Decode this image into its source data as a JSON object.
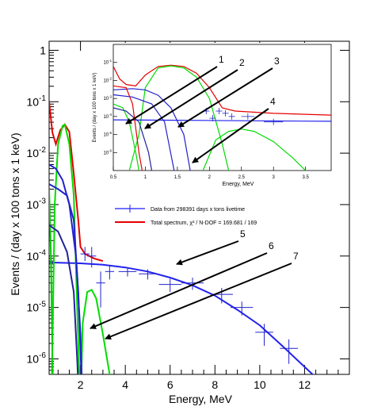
{
  "chart_data": {
    "type": "line",
    "xlabel": "Energy, MeV",
    "ylabel": "Events / (day x 100 tons x 1 keV)",
    "xlim": [
      0.6,
      14.0
    ],
    "ylim": [
      5e-07,
      1.5
    ],
    "yscale": "log",
    "x_ticks": [
      2,
      4,
      6,
      8,
      10,
      12
    ],
    "x_tick_labels": [
      "2",
      "4",
      "6",
      "8",
      "10",
      "12"
    ],
    "y_ticks": [
      1e-06,
      1e-05,
      0.0001,
      0.001,
      0.01,
      0.1,
      1
    ],
    "y_tick_labels": [
      "10^-6",
      "10^-5",
      "10^-4",
      "10^-3",
      "10^-2",
      "10^-1",
      "1"
    ],
    "legend": {
      "placement": "center-right",
      "entries": [
        {
          "label": "Data from 298391 days x tons livetime",
          "color": "#1a1aff"
        },
        {
          "label": "Total spectrum, χ² / N-DOF = 169.681 / 169",
          "color": "#e60000"
        }
      ]
    },
    "series": [
      {
        "color": "#2222ee",
        "role": "flat component",
        "points": [
          [
            0.6,
            7.5e-05
          ],
          [
            2,
            7.2e-05
          ],
          [
            3,
            6.8e-05
          ],
          [
            4,
            6e-05
          ],
          [
            5,
            5e-05
          ],
          [
            6,
            3.8e-05
          ],
          [
            7,
            2.7e-05
          ],
          [
            8,
            1.7e-05
          ],
          [
            9,
            9e-06
          ],
          [
            10,
            4.5e-06
          ],
          [
            11,
            1.8e-06
          ],
          [
            12,
            7e-07
          ],
          [
            12.6,
            4e-07
          ]
        ]
      },
      {
        "color": "#e60000",
        "role": "total spectrum",
        "points": [
          [
            0.6,
            0.1
          ],
          [
            0.75,
            0.025
          ],
          [
            0.9,
            0.015
          ],
          [
            1.1,
            0.028
          ],
          [
            1.3,
            0.036
          ],
          [
            1.5,
            0.026
          ],
          [
            1.7,
            0.004
          ],
          [
            1.9,
            0.0005
          ],
          [
            2.0,
            0.00015
          ],
          [
            2.2,
            0.00011
          ],
          [
            2.6,
            9e-05
          ],
          [
            3,
            8e-05
          ]
        ]
      },
      {
        "color": "#00dd00",
        "role": "peak component",
        "points": [
          [
            0.7,
            1e-07
          ],
          [
            0.85,
            0.001
          ],
          [
            1.0,
            0.015
          ],
          [
            1.2,
            0.034
          ],
          [
            1.3,
            0.036
          ],
          [
            1.5,
            0.015
          ],
          [
            1.7,
            0.0015
          ],
          [
            1.85,
            1e-05
          ],
          [
            2.0,
            1e-07
          ]
        ]
      },
      {
        "color": "#00dd00",
        "role": "high-energy gaussian",
        "points": [
          [
            2.0,
            1e-07
          ],
          [
            2.1,
            5e-06
          ],
          [
            2.3,
            2e-05
          ],
          [
            2.5,
            2.2e-05
          ],
          [
            2.7,
            1.5e-05
          ],
          [
            3.0,
            3e-06
          ],
          [
            3.3,
            5e-07
          ],
          [
            3.6,
            1e-07
          ]
        ]
      },
      {
        "color": "#00cc00",
        "role": "low-energy component",
        "points": [
          [
            0.6,
            0.002
          ],
          [
            0.68,
            0.0001
          ],
          [
            0.75,
            1e-06
          ],
          [
            0.8,
            1e-07
          ]
        ]
      },
      {
        "color": "#2222cc",
        "role": "blue component 1",
        "points": [
          [
            0.6,
            0.006
          ],
          [
            0.9,
            0.005
          ],
          [
            1.2,
            0.003
          ],
          [
            1.5,
            0.001
          ],
          [
            1.8,
            0.0001
          ],
          [
            2.0,
            3e-06
          ],
          [
            2.1,
            1e-07
          ]
        ]
      },
      {
        "color": "#2222cc",
        "role": "blue component 2",
        "points": [
          [
            0.6,
            0.0025
          ],
          [
            1.0,
            0.002
          ],
          [
            1.4,
            0.0015
          ],
          [
            1.7,
            0.0005
          ],
          [
            1.9,
            2e-05
          ],
          [
            2.1,
            1e-07
          ]
        ]
      },
      {
        "color": "#222299",
        "role": "blue component 3",
        "points": [
          [
            0.6,
            0.0004
          ],
          [
            1.0,
            0.0003
          ],
          [
            1.4,
            0.00012
          ],
          [
            1.7,
            2e-05
          ],
          [
            1.85,
            1e-06
          ],
          [
            1.95,
            1e-07
          ]
        ]
      }
    ],
    "data_points": {
      "color": "#2222cc",
      "points": [
        [
          2.2,
          0.00011
        ],
        [
          2.5,
          0.0001
        ],
        [
          2.9,
          3e-05
        ],
        [
          3.3,
          5e-05
        ],
        [
          4.1,
          5e-05
        ],
        [
          5.0,
          4.5e-05
        ],
        [
          6.0,
          2.8e-05
        ],
        [
          7.0,
          3e-05
        ],
        [
          8.3,
          1.8e-05
        ],
        [
          9.2,
          1e-05
        ],
        [
          10.2,
          3.3e-06
        ],
        [
          11.3,
          1.6e-06
        ]
      ],
      "xerr": [
        0.2,
        0.2,
        0.2,
        0.2,
        0.4,
        0.4,
        0.5,
        0.5,
        0.5,
        0.5,
        0.4,
        0.4
      ],
      "yerr_lo": [
        3e-05,
        4e-05,
        2e-05,
        1.5e-05,
        1e-05,
        1e-05,
        8e-06,
        8e-06,
        6e-06,
        3e-06,
        1.5e-06,
        8e-07
      ],
      "yerr_hi": [
        4e-05,
        5e-05,
        2e-05,
        1.5e-05,
        1e-05,
        1e-05,
        8e-06,
        8e-06,
        6e-06,
        3e-06,
        1.5e-06,
        8e-07
      ]
    },
    "annotations": [
      "1",
      "2",
      "3",
      "4",
      "5",
      "6",
      "7"
    ],
    "inset": {
      "xlabel": "Energy, MeV",
      "ylabel": "Events / (day x 100 tons x 1 keV)",
      "xlim": [
        0.5,
        3.9
      ],
      "ylim": [
        1e-07,
        1
      ],
      "yscale": "log",
      "x_ticks": [
        0.5,
        1,
        1.5,
        2,
        2.5,
        3,
        3.5
      ],
      "x_tick_labels": [
        "0.5",
        "1",
        "1.5",
        "2",
        "2.5",
        "3",
        "3.5"
      ],
      "y_ticks": [
        1e-06,
        1e-05,
        0.0001,
        0.001,
        0.01,
        0.1
      ],
      "y_tick_labels": [
        "10^-6",
        "10^-5",
        "10^-4",
        "10^-3",
        "10^-2",
        "10^-1"
      ],
      "series": [
        {
          "color": "#e60000",
          "role": "total spectrum",
          "points": [
            [
              0.5,
              0.06
            ],
            [
              0.6,
              0.012
            ],
            [
              0.7,
              0.006
            ],
            [
              0.85,
              0.005
            ],
            [
              1.0,
              0.02
            ],
            [
              1.2,
              0.06
            ],
            [
              1.4,
              0.07
            ],
            [
              1.6,
              0.06
            ],
            [
              1.8,
              0.025
            ],
            [
              2.0,
              0.004
            ],
            [
              2.2,
              0.0003
            ],
            [
              2.4,
              0.0002
            ],
            [
              3.0,
              0.00015
            ],
            [
              3.9,
              0.00012
            ]
          ]
        },
        {
          "color": "#00dd00",
          "role": "main peak",
          "points": [
            [
              0.75,
              1e-07
            ],
            [
              0.9,
              1e-05
            ],
            [
              1.0,
              0.004
            ],
            [
              1.2,
              0.05
            ],
            [
              1.4,
              0.065
            ],
            [
              1.6,
              0.05
            ],
            [
              1.8,
              0.015
            ],
            [
              2.0,
              0.001
            ],
            [
              2.2,
              3e-06
            ],
            [
              2.3,
              1e-07
            ]
          ]
        },
        {
          "color": "#00dd00",
          "role": "gaussian high",
          "points": [
            [
              1.9,
              1e-07
            ],
            [
              2.1,
              5e-06
            ],
            [
              2.3,
              1.5e-05
            ],
            [
              2.5,
              2e-05
            ],
            [
              2.7,
              1.5e-05
            ],
            [
              3.0,
              4e-06
            ],
            [
              3.3,
              5e-07
            ],
            [
              3.5,
              1e-07
            ]
          ]
        },
        {
          "color": "#00dd00",
          "role": "gaussian low",
          "points": [
            [
              0.5,
              0.0005
            ],
            [
              0.65,
              0.0003
            ],
            [
              0.75,
              5e-05
            ],
            [
              0.85,
              1e-06
            ],
            [
              0.9,
              1e-07
            ]
          ]
        },
        {
          "color": "#2222ee",
          "role": "flat",
          "points": [
            [
              0.5,
              6.5e-05
            ],
            [
              1.5,
              6.2e-05
            ],
            [
              2.5,
              5.8e-05
            ],
            [
              3.9,
              5.4e-05
            ]
          ]
        },
        {
          "color": "#2222cc",
          "role": "blue component 1",
          "points": [
            [
              0.5,
              0.003
            ],
            [
              0.8,
              0.0035
            ],
            [
              1.0,
              0.003
            ],
            [
              1.2,
              0.0015
            ],
            [
              1.4,
              0.0003
            ],
            [
              1.6,
              1e-05
            ],
            [
              1.7,
              1e-07
            ]
          ]
        },
        {
          "color": "#2222cc",
          "role": "blue component 2",
          "points": [
            [
              0.5,
              0.0016
            ],
            [
              0.8,
              0.0012
            ],
            [
              1.1,
              0.0005
            ],
            [
              1.3,
              5e-05
            ],
            [
              1.45,
              1e-07
            ]
          ]
        },
        {
          "color": "#222299",
          "role": "blue component 3",
          "points": [
            [
              0.5,
              0.0003
            ],
            [
              0.7,
              0.0002
            ],
            [
              0.9,
              5e-05
            ],
            [
              1.05,
              1e-06
            ],
            [
              1.1,
              1e-07
            ]
          ]
        },
        {
          "color": "#e60000",
          "role": "red steep",
          "points": [
            [
              0.5,
              0.005
            ],
            [
              0.7,
              0.004
            ],
            [
              0.8,
              0.0005
            ],
            [
              0.9,
              1e-06
            ],
            [
              0.95,
              1e-07
            ]
          ]
        }
      ],
      "data_points": {
        "color": "#2222cc",
        "points": [
          [
            1.95,
            0.0002
          ],
          [
            2.05,
            8e-05
          ],
          [
            2.15,
            0.0002
          ],
          [
            2.25,
            0.00015
          ],
          [
            2.35,
            0.0001
          ],
          [
            2.6,
            0.0001
          ],
          [
            3.0,
            5e-05
          ]
        ],
        "xerr": [
          0.05,
          0.05,
          0.05,
          0.05,
          0.05,
          0.1,
          0.15
        ]
      }
    }
  }
}
